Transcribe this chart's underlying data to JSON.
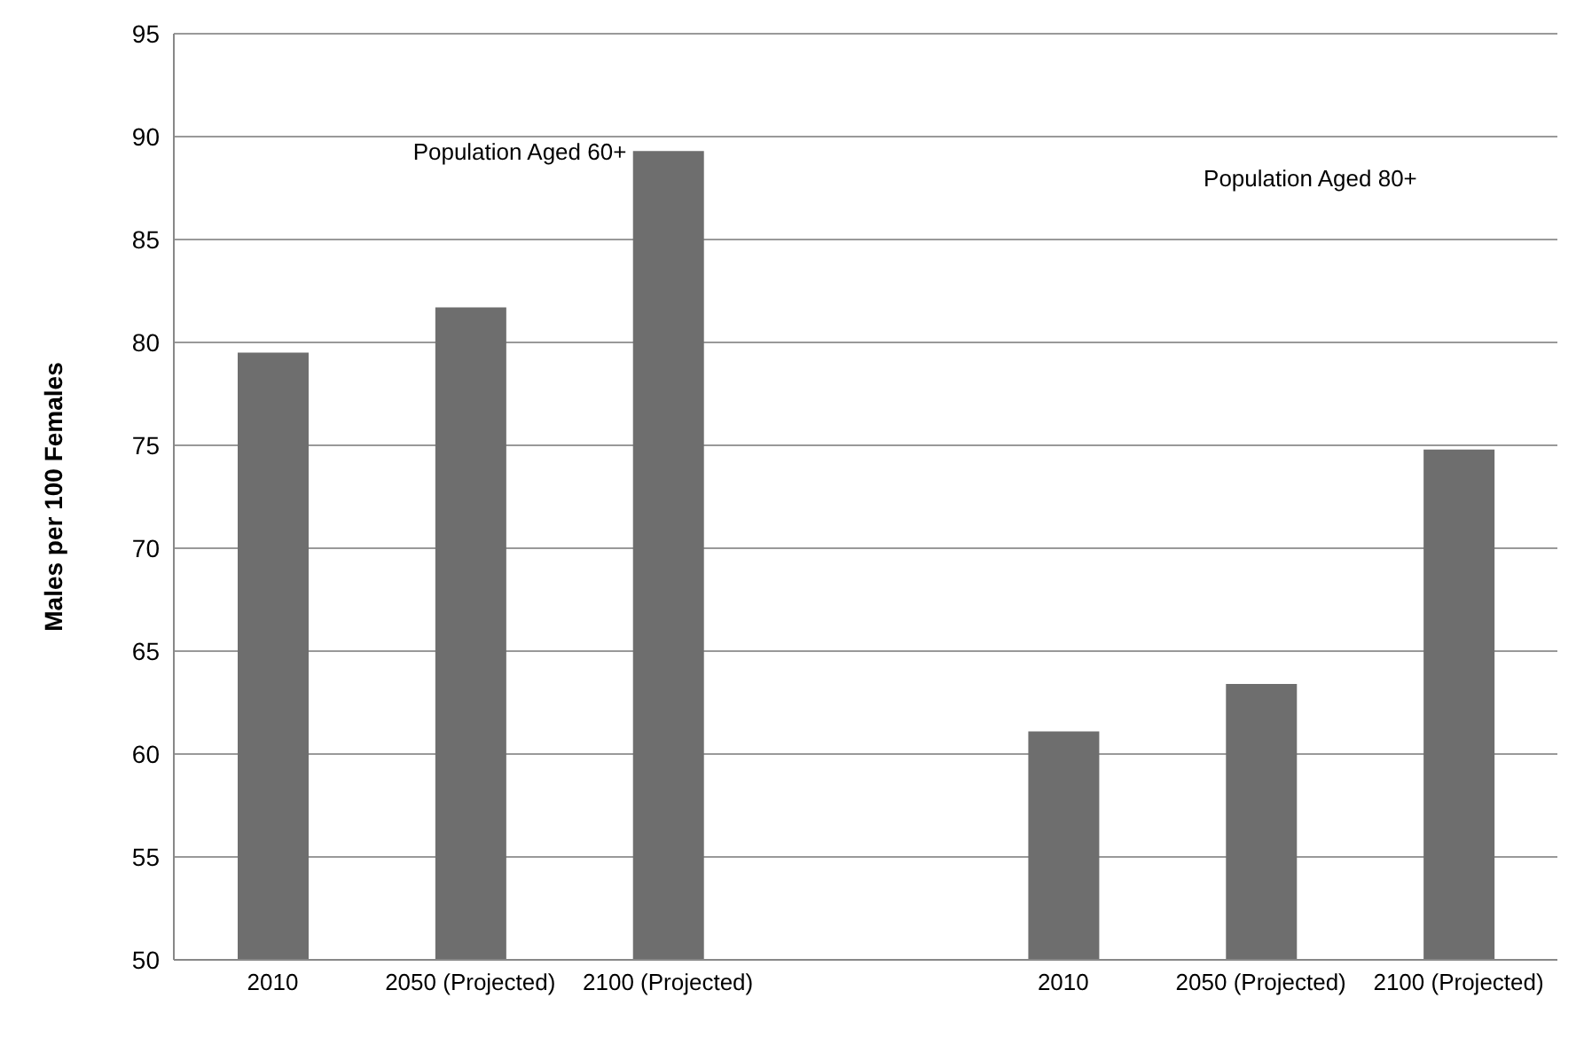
{
  "chart_data": {
    "type": "bar",
    "ylabel": "Males per 100 Females",
    "categories": [
      "2010",
      "2050 (Projected)",
      "2100 (Projected)",
      null,
      "2010",
      "2050 (Projected)",
      "2100 (Projected)"
    ],
    "values": [
      79.5,
      81.7,
      89.3,
      null,
      61.1,
      63.4,
      74.8
    ],
    "color": "#6e6e6e",
    "ylim": [
      50,
      95
    ],
    "yticks": [
      50,
      55,
      60,
      65,
      70,
      75,
      80,
      85,
      90,
      95
    ],
    "grid": "y",
    "annotations": [
      "Population Aged 60+",
      "Population Aged 80+"
    ]
  }
}
